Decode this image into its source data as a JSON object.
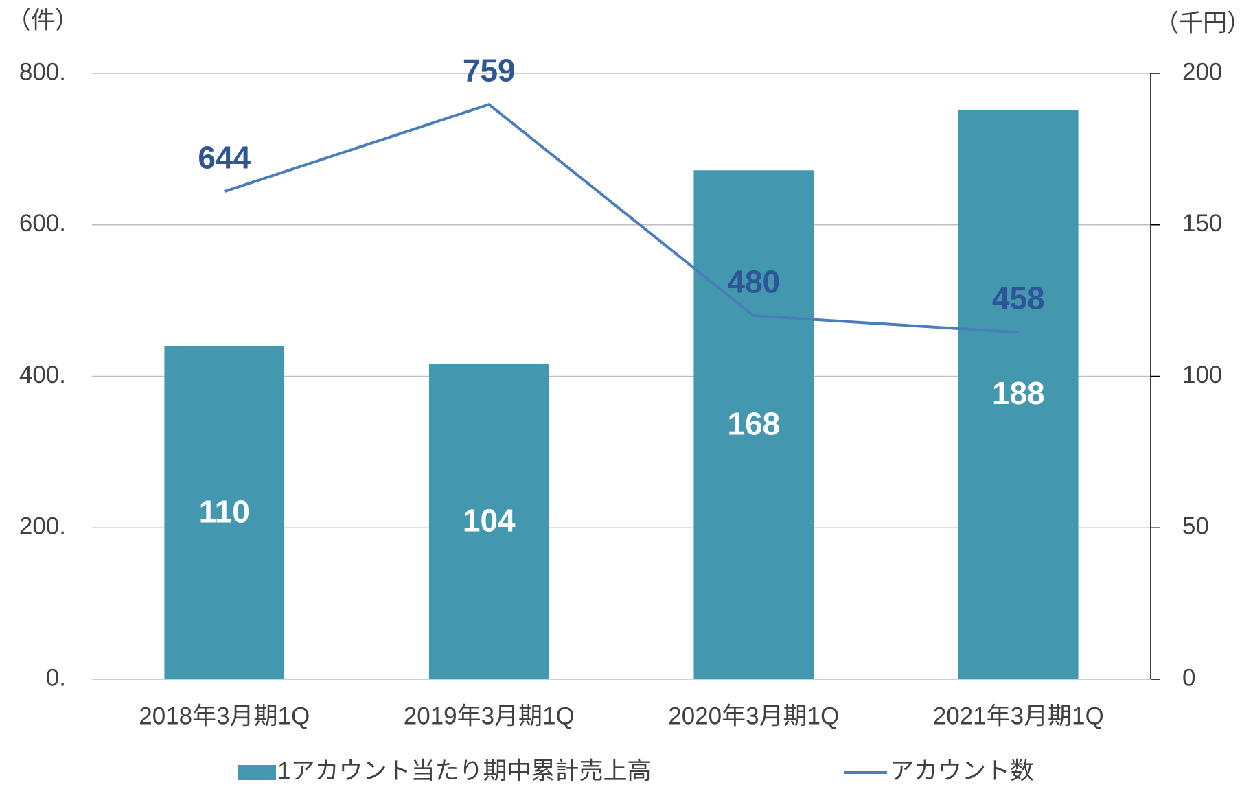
{
  "chart_data": {
    "type": "bar_line",
    "ylabel": "（件）",
    "y2label": "（千円）",
    "categories": [
      "2018年3月期1Q",
      "2019年3月期1Q",
      "2020年3月期1Q",
      "2021年3月期1Q"
    ],
    "series": [
      {
        "name": "1アカウント当たり期中累計売上高",
        "type": "bar",
        "axis": "y2",
        "color": "#4398b0",
        "values": [
          110,
          104,
          168,
          188
        ]
      },
      {
        "name": "アカウント数",
        "type": "line",
        "color": "#4a7ebb",
        "values": [
          644,
          759,
          480,
          458
        ]
      }
    ],
    "ylim": [
      0,
      800
    ],
    "yticks": [
      {
        "value": 0,
        "label": "0."
      },
      {
        "value": 200,
        "label": "200."
      },
      {
        "value": 400,
        "label": "400."
      },
      {
        "value": 600,
        "label": "600."
      },
      {
        "value": 800,
        "label": "800."
      }
    ],
    "y2lim": [
      0,
      200
    ],
    "y2ticks": [
      0,
      50,
      100,
      150,
      200
    ],
    "grid": true,
    "legend": "bottom"
  }
}
